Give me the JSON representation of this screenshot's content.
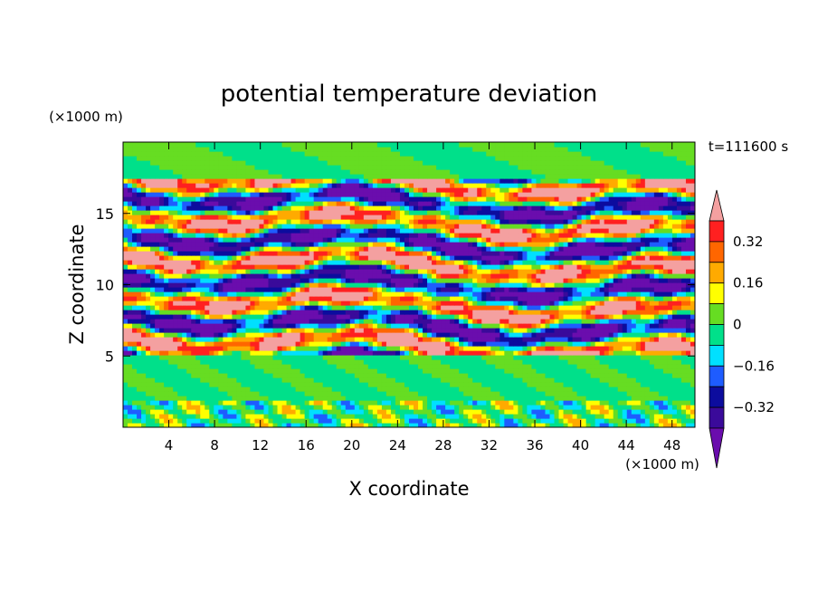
{
  "chart_data": {
    "type": "heatmap",
    "title": "potential temperature deviation",
    "xlabel": "X coordinate",
    "ylabel": "Z coordinate",
    "x_units": "(×1000 m)",
    "y_units": "(×1000 m)",
    "time_label": "t=111600 s",
    "xlim": [
      0,
      50
    ],
    "ylim": [
      0,
      20
    ],
    "x_ticks": [
      4,
      8,
      12,
      16,
      20,
      24,
      28,
      32,
      36,
      40,
      44,
      48
    ],
    "y_ticks": [
      5,
      10,
      15
    ],
    "x_tick_labels": [
      "4",
      "8",
      "12",
      "16",
      "20",
      "24",
      "28",
      "32",
      "36",
      "40",
      "44",
      "48"
    ],
    "y_tick_labels": [
      "5",
      "10",
      "15"
    ],
    "colorbar": {
      "levels": [
        -0.4,
        -0.32,
        -0.24,
        -0.16,
        -0.08,
        0,
        0.08,
        0.16,
        0.24,
        0.32,
        0.4
      ],
      "colors": [
        "#6a0dad",
        "#3a0a9a",
        "#0c0c9e",
        "#1e5cff",
        "#00e0ff",
        "#00e08a",
        "#66dd22",
        "#ffff00",
        "#ffaa00",
        "#ff6600",
        "#ff2020",
        "#f4a0a0"
      ],
      "labels": [
        "0.32",
        "0.16",
        "0",
        "−0.16",
        "−0.32"
      ],
      "label_values": [
        0.32,
        0.16,
        0,
        -0.16,
        -0.32
      ]
    },
    "bands": [
      {
        "z": [
          0.0,
          2.0
        ],
        "description": "weak mixed",
        "amp": 0.18
      },
      {
        "z": [
          2.0,
          5.0
        ],
        "description": "near zero",
        "amp": 0.06
      },
      {
        "z": [
          5.0,
          17.5
        ],
        "description": "strong layered",
        "amp": 0.55
      },
      {
        "z": [
          17.5,
          20.0
        ],
        "description": "near zero",
        "amp": 0.05
      }
    ]
  }
}
